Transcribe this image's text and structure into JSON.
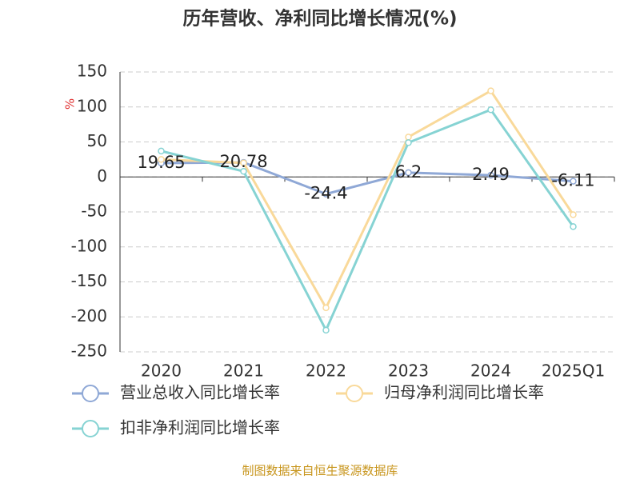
{
  "chart_data": {
    "type": "line",
    "title": "历年营收、净利同比增长情况(%)",
    "y_label": "%",
    "categories": [
      "2020",
      "2021",
      "2022",
      "2023",
      "2024",
      "2025Q1"
    ],
    "series": [
      {
        "name": "营业总收入同比增长率",
        "color": "#8fa8d6",
        "values": [
          19.65,
          20.78,
          -24.4,
          6.2,
          2.49,
          -6.11
        ],
        "labels": true
      },
      {
        "name": "归母净利润同比增长率",
        "color": "#f9d99a",
        "values": [
          25,
          20,
          -187,
          57,
          123,
          -54
        ]
      },
      {
        "name": "扣非净利润同比增长率",
        "color": "#86d3d3",
        "values": [
          37,
          8,
          -219,
          49,
          96,
          -71
        ]
      }
    ],
    "ylim": [
      -250,
      150
    ],
    "yticks": [
      -250,
      -200,
      -150,
      -100,
      -50,
      0,
      50,
      100,
      150
    ],
    "grid": true,
    "source": "制图数据来自恒生聚源数据库"
  }
}
